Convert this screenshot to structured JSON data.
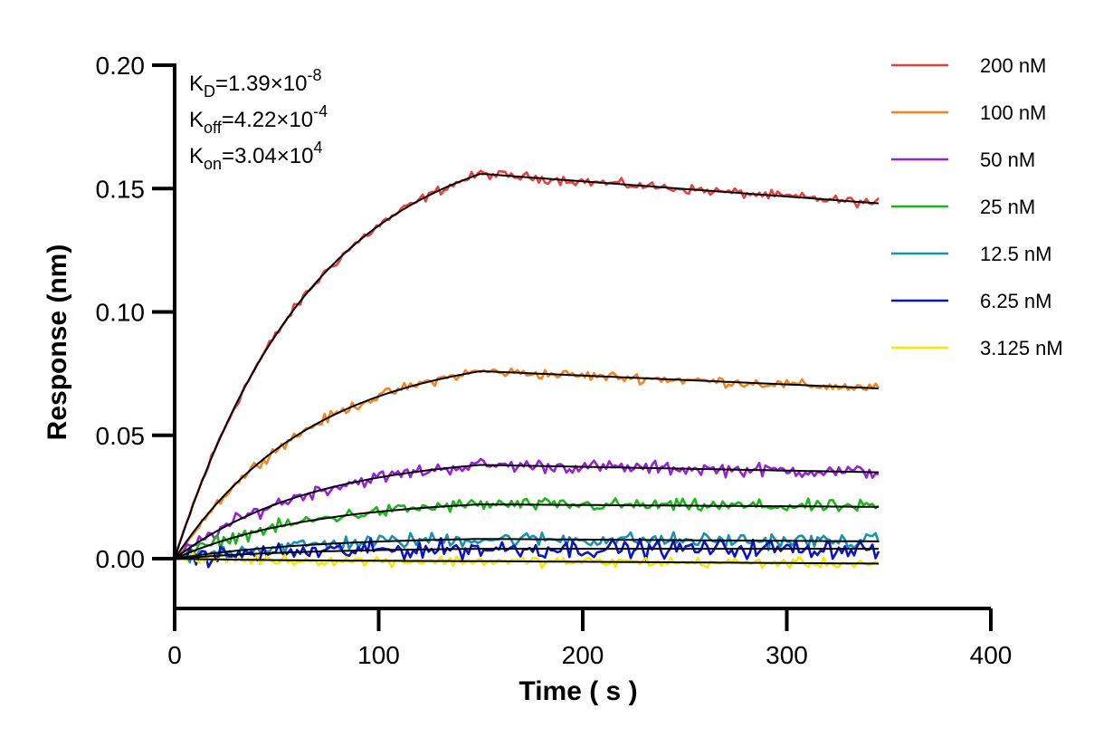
{
  "chart_data": {
    "type": "line",
    "title": "",
    "xlabel": "Time ( s )",
    "ylabel": "Response (nm)",
    "xlim": [
      0,
      400
    ],
    "ylim": [
      -0.02,
      0.2
    ],
    "x_ticks": [
      "0",
      "100",
      "200",
      "300",
      "400"
    ],
    "y_ticks": [
      "0.00",
      "0.05",
      "0.10",
      "0.15",
      "0.20"
    ],
    "x_tick_values": [
      0,
      100,
      200,
      300,
      400
    ],
    "y_tick_values": [
      0,
      0.05,
      0.1,
      0.15,
      0.2
    ],
    "grid": false,
    "legend_position": "top-right",
    "kinetics": [
      {
        "symbol": "K",
        "sub": "D",
        "eq": "=1.39×10",
        "exp": "-8"
      },
      {
        "symbol": "K",
        "sub": "off",
        "eq": "=4.22×10",
        "exp": "-4"
      },
      {
        "symbol": "K",
        "sub": "on",
        "eq": "=3.04×10",
        "exp": "4"
      }
    ],
    "association_end_time": 150,
    "x_end": 345,
    "series": [
      {
        "name": "200 nM",
        "color": "#e8413c",
        "peak": 0.156,
        "end": 0.144,
        "noise": 0.0028
      },
      {
        "name": "100 nM",
        "color": "#f5841f",
        "peak": 0.076,
        "end": 0.069,
        "noise": 0.003
      },
      {
        "name": "50 nM",
        "color": "#9b1fd8",
        "peak": 0.038,
        "end": 0.035,
        "noise": 0.004
      },
      {
        "name": "25 nM",
        "color": "#19b818",
        "peak": 0.022,
        "end": 0.021,
        "noise": 0.0038
      },
      {
        "name": "12.5 nM",
        "color": "#1593b5",
        "peak": 0.008,
        "end": 0.007,
        "noise": 0.0045
      },
      {
        "name": "6.25 nM",
        "color": "#0a14c8",
        "peak": 0.004,
        "end": 0.004,
        "noise": 0.0055
      },
      {
        "name": "3.125 nM",
        "color": "#f5ea00",
        "peak": -0.001,
        "end": -0.002,
        "noise": 0.003
      }
    ],
    "fit_color": "#000000"
  }
}
